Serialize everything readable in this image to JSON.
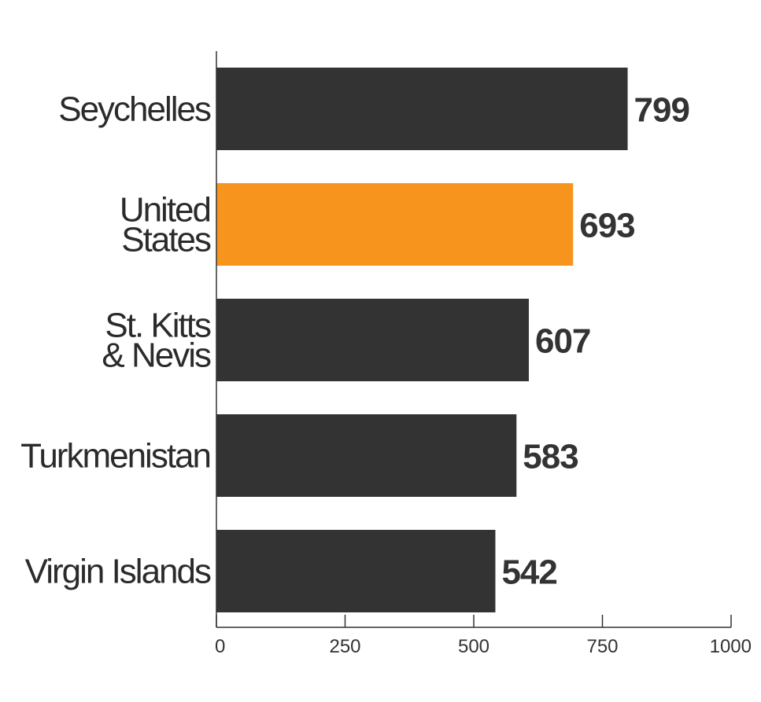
{
  "chart_data": {
    "type": "bar",
    "orientation": "horizontal",
    "categories": [
      [
        "Seychelles"
      ],
      [
        "United",
        "States"
      ],
      [
        "St. Kitts",
        "& Nevis"
      ],
      [
        "Turkmenistan"
      ],
      [
        "Virgin Islands"
      ]
    ],
    "values": [
      799,
      693,
      607,
      583,
      542
    ],
    "value_labels": [
      "799",
      "693",
      "607",
      "583",
      "542"
    ],
    "xlim": [
      0,
      1000
    ],
    "xticks": [
      0,
      250,
      500,
      750,
      1000
    ],
    "xtick_labels": [
      "0",
      "250",
      "500",
      "750",
      "1000"
    ],
    "highlight_index": 1,
    "colors": {
      "default": "#333333",
      "highlight": "#f7941d"
    },
    "grid": false,
    "title": "",
    "xlabel": "",
    "ylabel": ""
  }
}
